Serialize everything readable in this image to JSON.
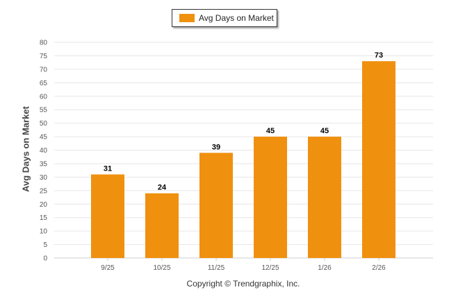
{
  "chart_data": {
    "type": "bar",
    "categories": [
      "9/25",
      "10/25",
      "11/25",
      "12/25",
      "1/26",
      "2/26"
    ],
    "series": [
      {
        "name": "Avg Days on Market",
        "values": [
          31,
          24,
          39,
          45,
          45,
          73
        ]
      }
    ],
    "title": "",
    "xlabel": "",
    "ylabel": "Avg Days on Market",
    "ylim": [
      0,
      80
    ],
    "yticks": [
      0,
      5,
      10,
      15,
      20,
      25,
      30,
      35,
      40,
      45,
      50,
      55,
      60,
      65,
      70,
      75,
      80
    ],
    "grid": true,
    "legend_position": "top-center",
    "data_labels": true,
    "bar_color": "#F0900F"
  },
  "footer": {
    "copyright": "Copyright © Trendgraphix, Inc."
  }
}
